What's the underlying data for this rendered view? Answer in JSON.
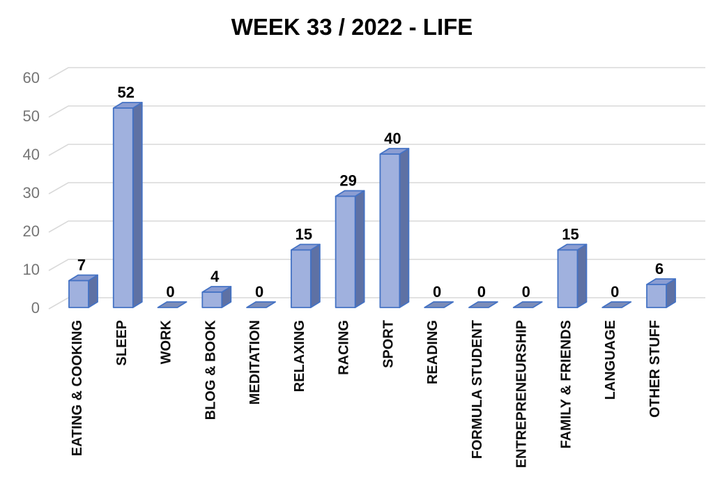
{
  "page": {
    "background": "#ffffff"
  },
  "chart_data": {
    "type": "bar",
    "style": "3d-column",
    "title": "WEEK 33 / 2022 - LIFE",
    "categories": [
      "EATING & COOKING",
      "SLEEP",
      "WORK",
      "BLOG & BOOK",
      "MEDITATION",
      "RELAXING",
      "RACING",
      "SPORT",
      "READING",
      "FORMULA STUDENT",
      "ENTREPRENEURSHIP",
      "FAMILY & FRIENDS",
      "LANGUAGE",
      "OTHER STUFF"
    ],
    "values": [
      7,
      52,
      0,
      4,
      0,
      15,
      29,
      40,
      0,
      0,
      0,
      15,
      0,
      6
    ],
    "data_labels_shown": true,
    "xlabel": "",
    "ylabel": "",
    "ylim": [
      0,
      60
    ],
    "ytick_step": 10,
    "yticks": [
      0,
      10,
      20,
      30,
      40,
      50,
      60
    ],
    "grid": true,
    "legend": false,
    "colors": {
      "bar_front": "#a0b1de",
      "bar_top": "#8b9dd2",
      "bar_side": "#5e71a4",
      "bar_outline": "#4472c4",
      "zero_marker": "#7b8cb8",
      "gridline": "#d9d9d9",
      "tick_label": "#757575",
      "text": "#000000"
    }
  }
}
